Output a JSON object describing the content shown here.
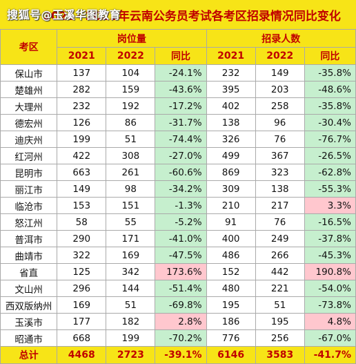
{
  "title": "2021~2022年云南公务员考试各考区招录情况同比变化",
  "watermark": "搜狐号@玉溪华图教育",
  "headers": {
    "region": "考区",
    "positions": "岗位量",
    "recruits": "招录人数",
    "y2021": "2021",
    "y2022": "2022",
    "yoy": "同比"
  },
  "rows": [
    {
      "region": "保山市",
      "p21": "137",
      "p22": "104",
      "pyoy": "-24.1%",
      "pc": "green",
      "r21": "232",
      "r22": "149",
      "ryoy": "-35.8%",
      "rc": "green"
    },
    {
      "region": "楚雄州",
      "p21": "282",
      "p22": "159",
      "pyoy": "-43.6%",
      "pc": "green",
      "r21": "395",
      "r22": "203",
      "ryoy": "-48.6%",
      "rc": "green"
    },
    {
      "region": "大理州",
      "p21": "232",
      "p22": "192",
      "pyoy": "-17.2%",
      "pc": "green",
      "r21": "402",
      "r22": "258",
      "ryoy": "-35.8%",
      "rc": "green"
    },
    {
      "region": "德宏州",
      "p21": "126",
      "p22": "86",
      "pyoy": "-31.7%",
      "pc": "green",
      "r21": "138",
      "r22": "96",
      "ryoy": "-30.4%",
      "rc": "green"
    },
    {
      "region": "迪庆州",
      "p21": "199",
      "p22": "51",
      "pyoy": "-74.4%",
      "pc": "green",
      "r21": "326",
      "r22": "76",
      "ryoy": "-76.7%",
      "rc": "green"
    },
    {
      "region": "红河州",
      "p21": "422",
      "p22": "308",
      "pyoy": "-27.0%",
      "pc": "green",
      "r21": "499",
      "r22": "367",
      "ryoy": "-26.5%",
      "rc": "green"
    },
    {
      "region": "昆明市",
      "p21": "663",
      "p22": "261",
      "pyoy": "-60.6%",
      "pc": "green",
      "r21": "869",
      "r22": "323",
      "ryoy": "-62.8%",
      "rc": "green"
    },
    {
      "region": "丽江市",
      "p21": "149",
      "p22": "98",
      "pyoy": "-34.2%",
      "pc": "green",
      "r21": "309",
      "r22": "138",
      "ryoy": "-55.3%",
      "rc": "green"
    },
    {
      "region": "临沧市",
      "p21": "153",
      "p22": "151",
      "pyoy": "-1.3%",
      "pc": "green",
      "r21": "210",
      "r22": "217",
      "ryoy": "3.3%",
      "rc": "red"
    },
    {
      "region": "怒江州",
      "p21": "58",
      "p22": "55",
      "pyoy": "-5.2%",
      "pc": "green",
      "r21": "91",
      "r22": "76",
      "ryoy": "-16.5%",
      "rc": "green"
    },
    {
      "region": "普洱市",
      "p21": "290",
      "p22": "171",
      "pyoy": "-41.0%",
      "pc": "green",
      "r21": "400",
      "r22": "249",
      "ryoy": "-37.8%",
      "rc": "green"
    },
    {
      "region": "曲靖市",
      "p21": "322",
      "p22": "169",
      "pyoy": "-47.5%",
      "pc": "green",
      "r21": "486",
      "r22": "266",
      "ryoy": "-45.3%",
      "rc": "green"
    },
    {
      "region": "省直",
      "p21": "125",
      "p22": "342",
      "pyoy": "173.6%",
      "pc": "red",
      "r21": "152",
      "r22": "442",
      "ryoy": "190.8%",
      "rc": "red"
    },
    {
      "region": "文山州",
      "p21": "296",
      "p22": "144",
      "pyoy": "-51.4%",
      "pc": "green",
      "r21": "480",
      "r22": "221",
      "ryoy": "-54.0%",
      "rc": "green"
    },
    {
      "region": "西双版纳州",
      "p21": "169",
      "p22": "51",
      "pyoy": "-69.8%",
      "pc": "green",
      "r21": "195",
      "r22": "51",
      "ryoy": "-73.8%",
      "rc": "green"
    },
    {
      "region": "玉溪市",
      "p21": "177",
      "p22": "182",
      "pyoy": "2.8%",
      "pc": "red",
      "r21": "186",
      "r22": "195",
      "ryoy": "4.8%",
      "rc": "red"
    },
    {
      "region": "昭通市",
      "p21": "668",
      "p22": "199",
      "pyoy": "-70.2%",
      "pc": "green",
      "r21": "776",
      "r22": "256",
      "ryoy": "-67.0%",
      "rc": "green"
    }
  ],
  "total": {
    "label": "总计",
    "p21": "4468",
    "p22": "2723",
    "pyoy": "-39.1%",
    "r21": "6146",
    "r22": "3583",
    "ryoy": "-41.7%"
  },
  "colors": {
    "header_bg": "#f7e417",
    "header_text": "#c00000",
    "decrease_bg": "#c6efce",
    "increase_bg": "#ffc7ce"
  }
}
